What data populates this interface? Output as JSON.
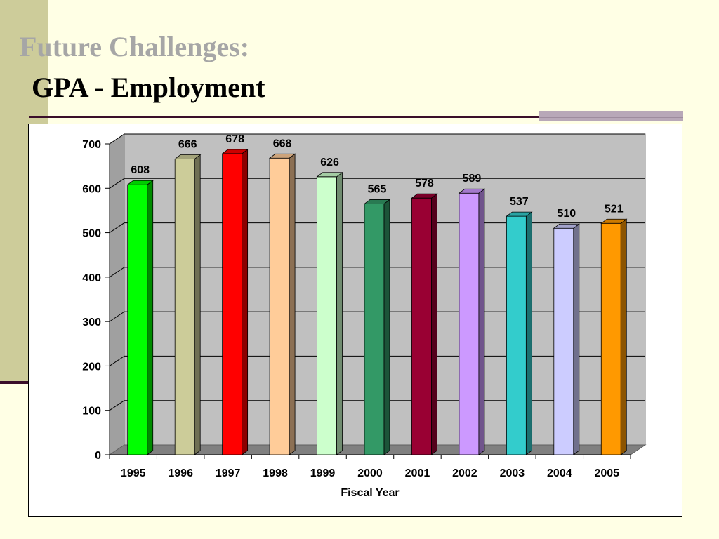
{
  "slide": {
    "title": "Future Challenges:",
    "subtitle": "GPA - Employment"
  },
  "chart_data": {
    "type": "bar",
    "title": "",
    "xlabel": "Fiscal Year",
    "ylabel": "",
    "ylim": [
      0,
      700
    ],
    "yticks": [
      0,
      100,
      200,
      300,
      400,
      500,
      600,
      700
    ],
    "grid": true,
    "style": "3d",
    "background_color": "#C0C0C0",
    "floor_color": "#808080",
    "categories": [
      "1995",
      "1996",
      "1997",
      "1998",
      "1999",
      "2000",
      "2001",
      "2002",
      "2003",
      "2004",
      "2005"
    ],
    "values": [
      608,
      666,
      678,
      668,
      626,
      565,
      578,
      589,
      537,
      510,
      521
    ],
    "bar_colors": [
      "#00FF00",
      "#CCCC99",
      "#FF0000",
      "#FFCC99",
      "#CCFFCC",
      "#339966",
      "#990033",
      "#CC99FF",
      "#33CCCC",
      "#CCCCFF",
      "#FF9900"
    ]
  }
}
